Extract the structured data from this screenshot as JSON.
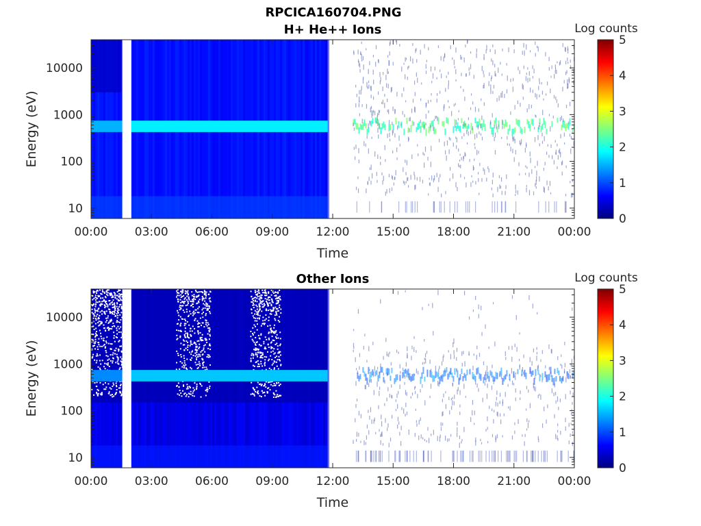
{
  "figure_title": "RPCICA160704.PNG",
  "colors": {
    "background_low": "#0a1ea8",
    "background_mid": "#1a3cff",
    "band": "#2aa8ff",
    "sparse_band": "#7fe0f0",
    "gap": "#ffffff",
    "axes": "#262626"
  },
  "colorbar_stops": [
    "#00007f",
    "#0000ff",
    "#007fff",
    "#00ffff",
    "#7fff7f",
    "#ffff00",
    "#ff7f00",
    "#ff0000",
    "#7f0000"
  ],
  "chart_data": [
    {
      "type": "heatmap",
      "title": "H+ He++ Ions",
      "xlabel": "Time",
      "ylabel": "Energy (eV)",
      "yscale": "log",
      "ylim": [
        6,
        40000
      ],
      "xlim_hours": [
        0,
        24
      ],
      "x_ticks": [
        "00:00",
        "03:00",
        "06:00",
        "09:00",
        "12:00",
        "15:00",
        "18:00",
        "21:00",
        "00:00"
      ],
      "y_ticks": [
        "10",
        "100",
        "1000",
        "10000"
      ],
      "colorbar": {
        "label": "Log counts",
        "min": 0,
        "max": 5,
        "ticks": [
          "0",
          "1",
          "2",
          "3",
          "4",
          "5"
        ]
      },
      "data_gap_hours": [
        1.55,
        2.0
      ],
      "dense_coverage_hours": [
        0,
        11.75
      ],
      "sparse_coverage_hours": [
        13.0,
        24
      ],
      "band_center_eV": 550,
      "band_log_counts_dense": 1.8,
      "band_log_counts_sparse": 2.3,
      "background_log_counts": 0.7,
      "grid": false,
      "legend": "colorbar-right"
    },
    {
      "type": "heatmap",
      "title": "Other Ions",
      "xlabel": "Time",
      "ylabel": "Energy (eV)",
      "yscale": "log",
      "ylim": [
        6,
        40000
      ],
      "xlim_hours": [
        0,
        24
      ],
      "x_ticks": [
        "00:00",
        "03:00",
        "06:00",
        "09:00",
        "12:00",
        "15:00",
        "18:00",
        "21:00",
        "00:00"
      ],
      "y_ticks": [
        "10",
        "100",
        "1000",
        "10000"
      ],
      "colorbar": {
        "label": "Log counts",
        "min": 0,
        "max": 5,
        "ticks": [
          "0",
          "1",
          "2",
          "3",
          "4",
          "5"
        ]
      },
      "data_gap_hours": [
        1.55,
        2.0
      ],
      "dense_coverage_hours": [
        0,
        11.75
      ],
      "sparse_coverage_hours": [
        13.0,
        24
      ],
      "band_center_eV": 550,
      "band_log_counts_dense": 1.6,
      "band_log_counts_sparse": 1.2,
      "background_log_counts": 0.5,
      "grid": false,
      "legend": "colorbar-right"
    }
  ]
}
